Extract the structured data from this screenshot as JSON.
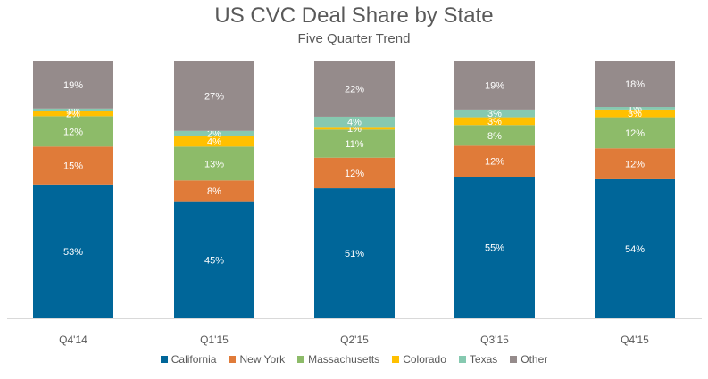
{
  "chart_data": {
    "type": "bar",
    "stacked": true,
    "title": "US CVC Deal Share by State",
    "subtitle": "Five Quarter Trend",
    "categories": [
      "Q4'14",
      "Q1'15",
      "Q2'15",
      "Q3'15",
      "Q4'15"
    ],
    "ylim": [
      0,
      100
    ],
    "legend_position": "bottom",
    "grid": false,
    "series": [
      {
        "name": "California",
        "color": "#006699",
        "values": [
          53,
          45,
          51,
          55,
          54
        ],
        "labels": [
          "53%",
          "45%",
          "51%",
          "55%",
          "54%"
        ]
      },
      {
        "name": "New York",
        "color": "#E07B39",
        "values": [
          15,
          8,
          12,
          12,
          12
        ],
        "labels": [
          "15%",
          "8%",
          "12%",
          "12%",
          "12%"
        ]
      },
      {
        "name": "Massachusetts",
        "color": "#8DBB69",
        "values": [
          12,
          13,
          11,
          8,
          12
        ],
        "labels": [
          "12%",
          "13%",
          "11%",
          "8%",
          "12%"
        ]
      },
      {
        "name": "Colorado",
        "color": "#FFC000",
        "values": [
          2,
          4,
          1,
          3,
          3
        ],
        "labels": [
          "2%",
          "4%",
          "1%",
          "3%",
          "3%"
        ]
      },
      {
        "name": "Texas",
        "color": "#86C9B0",
        "values": [
          1,
          2,
          4,
          3,
          1
        ],
        "labels": [
          "1%",
          "2%",
          "4%",
          "3%",
          "1%"
        ]
      },
      {
        "name": "Other",
        "color": "#958B8B",
        "values": [
          19,
          27,
          22,
          19,
          18
        ],
        "labels": [
          "19%",
          "27%",
          "22%",
          "19%",
          "18%"
        ]
      }
    ]
  }
}
